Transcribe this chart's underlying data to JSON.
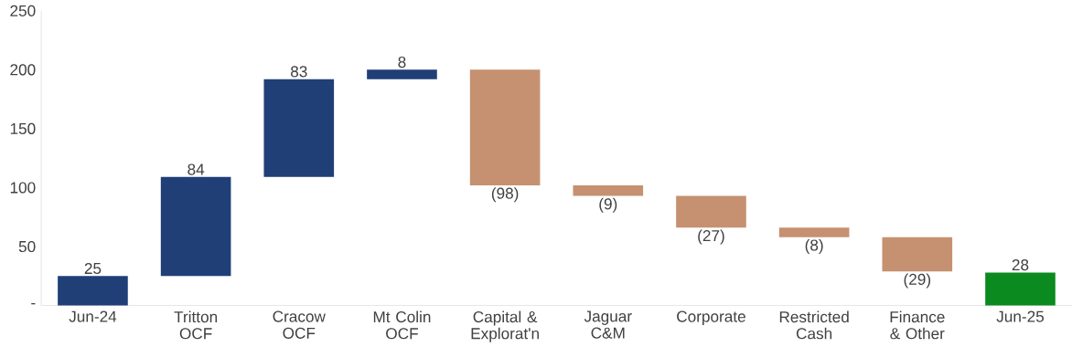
{
  "chart_data": {
    "type": "bar",
    "categories": [
      "Jun-24",
      "Tritton OCF",
      "Cracow OCF",
      "Mt Colin OCF",
      "Capital & Explorat'n",
      "Jaguar C&M",
      "Corporate",
      "Restricted Cash",
      "Finance & Other",
      "Jun-25"
    ],
    "values": [
      25,
      84,
      83,
      8,
      -98,
      -9,
      -27,
      -8,
      -29,
      28
    ],
    "base": [
      0,
      25,
      109,
      192,
      200,
      102,
      93,
      66,
      58,
      0
    ],
    "colors": [
      "#1f3f76",
      "#1f3f76",
      "#1f3f76",
      "#1f3f76",
      "#c69170",
      "#c69170",
      "#c69170",
      "#c69170",
      "#c69170",
      "#0b8a1f"
    ],
    "value_labels": [
      "25",
      "84",
      "83",
      "8",
      "(98)",
      "(9)",
      "(27)",
      "(8)",
      "(29)",
      "28"
    ],
    "ylim": [
      0,
      250
    ],
    "yticks": [
      {
        "value": 0,
        "label": "-"
      },
      50,
      100,
      150,
      200,
      250
    ],
    "grid": false
  }
}
